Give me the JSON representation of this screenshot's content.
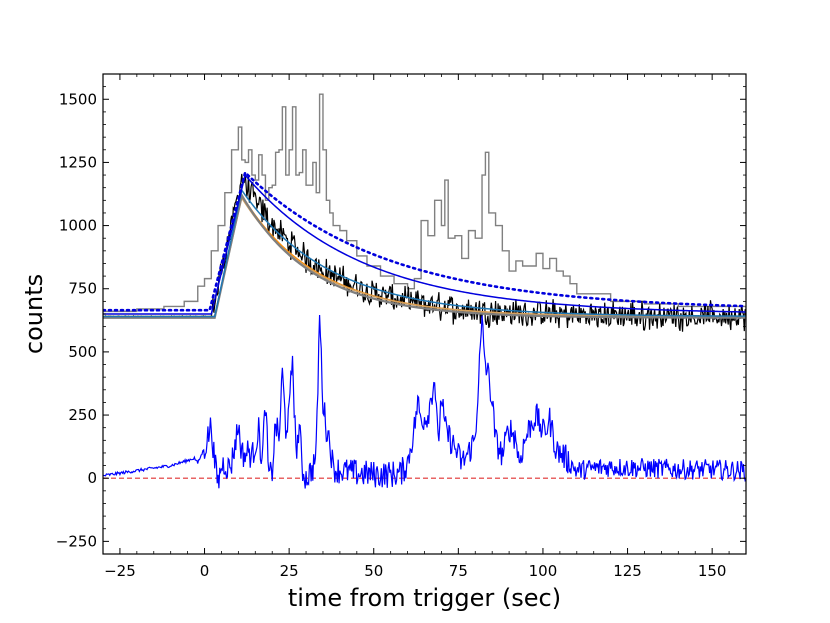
{
  "chart_data": {
    "type": "line",
    "title": "",
    "xlabel": "time from trigger (sec)",
    "ylabel": "counts",
    "xlim": [
      -30,
      160
    ],
    "ylim": [
      -300,
      1600
    ],
    "xticks": [
      -25,
      0,
      25,
      50,
      75,
      100,
      125,
      150
    ],
    "yticks": [
      -250,
      0,
      250,
      500,
      750,
      1000,
      1250,
      1500
    ],
    "grid": false,
    "legend": "none",
    "baseline": {
      "y": 0,
      "color": "#e03030",
      "style": "dashed"
    },
    "series": [
      {
        "color": "#808080",
        "style": "step",
        "x": [
          -30,
          -20,
          -12,
          -6,
          -2,
          0,
          2,
          4,
          6,
          8,
          10,
          11,
          12,
          13,
          14,
          15,
          16,
          17,
          18,
          19,
          20,
          21,
          22,
          23,
          24,
          25,
          26,
          27,
          28,
          29,
          30,
          31,
          32,
          33,
          34,
          35,
          36,
          37,
          38,
          40,
          42,
          45,
          48,
          52,
          56,
          60,
          62,
          64,
          66,
          68,
          70,
          71,
          72,
          74,
          76,
          78,
          80,
          82,
          83,
          84,
          86,
          88,
          90,
          92,
          94,
          96,
          98,
          100,
          102,
          104,
          106,
          108,
          110,
          120,
          130,
          140,
          150,
          160
        ],
        "y": [
          660,
          670,
          680,
          700,
          760,
          790,
          900,
          1000,
          1130,
          1300,
          1390,
          1260,
          1250,
          1300,
          1200,
          1180,
          1280,
          1200,
          1100,
          1150,
          1160,
          1290,
          1300,
          1470,
          1200,
          1300,
          1470,
          1200,
          1210,
          1300,
          1160,
          1160,
          1250,
          1130,
          1520,
          1300,
          1100,
          1050,
          1000,
          980,
          940,
          880,
          840,
          800,
          770,
          750,
          790,
          1020,
          960,
          1100,
          1000,
          1180,
          950,
          960,
          870,
          980,
          950,
          1200,
          1290,
          1050,
          1000,
          900,
          820,
          860,
          840,
          840,
          890,
          830,
          870,
          820,
          800,
          770,
          730,
          700,
          690,
          680,
          680,
          670
        ]
      },
      {
        "color": "#000000",
        "style": "noisy",
        "model": "decay",
        "params": [
          640,
          2,
          11,
          550,
          22
        ]
      },
      {
        "color": "#ff8c00",
        "style": "line",
        "model": "decay",
        "params": [
          640,
          3,
          11,
          480,
          22
        ]
      },
      {
        "color": "#d2a060",
        "style": "line",
        "model": "decay",
        "params": [
          640,
          3,
          11,
          470,
          22
        ]
      },
      {
        "color": "#7f7f7f",
        "style": "line",
        "model": "decay",
        "params": [
          635,
          3,
          11,
          485,
          21
        ]
      },
      {
        "color": "#1f77b4",
        "style": "line",
        "model": "decay",
        "params": [
          640,
          3,
          11,
          500,
          26
        ]
      },
      {
        "color": "#0000dd",
        "style": "line",
        "model": "decay",
        "params": [
          650,
          2,
          12,
          550,
          35
        ]
      },
      {
        "color": "#0000dd",
        "style": "dotted",
        "model": "decay",
        "params": [
          665,
          1.5,
          12,
          545,
          42
        ]
      },
      {
        "color": "#0000ff",
        "style": "residual",
        "x": [
          -30,
          -25,
          -20,
          -15,
          -10,
          -5,
          -3,
          -2,
          0,
          2,
          3,
          4,
          5,
          6,
          7,
          8,
          10,
          11,
          12,
          13,
          14,
          16,
          17,
          18,
          19,
          20,
          21,
          22,
          23,
          24,
          25,
          26,
          27,
          28,
          29,
          30,
          31,
          32,
          33,
          34,
          35,
          36,
          37,
          38,
          40,
          45,
          50,
          55,
          58,
          60,
          62,
          63,
          64,
          66,
          68,
          69,
          70,
          71,
          72,
          74,
          76,
          78,
          80,
          81,
          82,
          83,
          84,
          85,
          86,
          88,
          90,
          92,
          93,
          94,
          96,
          98,
          100,
          101,
          102,
          104,
          106,
          108,
          110,
          115,
          120,
          130,
          140,
          150,
          160
        ],
        "y": [
          10,
          20,
          30,
          40,
          50,
          70,
          80,
          60,
          120,
          210,
          60,
          -20,
          50,
          60,
          40,
          60,
          210,
          100,
          90,
          110,
          80,
          190,
          60,
          300,
          0,
          30,
          220,
          150,
          420,
          200,
          250,
          490,
          100,
          200,
          30,
          0,
          20,
          40,
          100,
          650,
          300,
          200,
          150,
          40,
          30,
          20,
          15,
          15,
          20,
          60,
          200,
          300,
          230,
          250,
          400,
          130,
          330,
          200,
          170,
          120,
          60,
          100,
          160,
          400,
          610,
          450,
          400,
          300,
          150,
          90,
          200,
          160,
          60,
          120,
          200,
          250,
          180,
          200,
          230,
          110,
          90,
          60,
          30,
          40,
          45,
          40,
          35,
          35,
          30
        ]
      }
    ]
  }
}
